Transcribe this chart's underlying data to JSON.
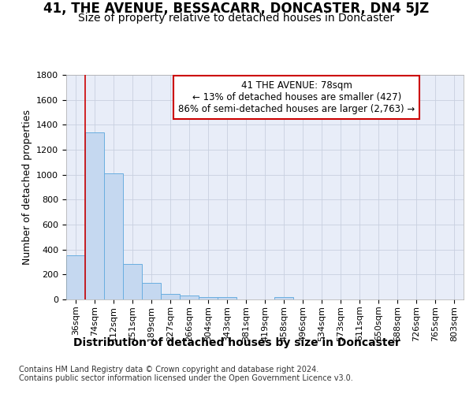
{
  "title": "41, THE AVENUE, BESSACARR, DONCASTER, DN4 5JZ",
  "subtitle": "Size of property relative to detached houses in Doncaster",
  "xlabel": "Distribution of detached houses by size in Doncaster",
  "ylabel": "Number of detached properties",
  "categories": [
    "36sqm",
    "74sqm",
    "112sqm",
    "151sqm",
    "189sqm",
    "227sqm",
    "266sqm",
    "304sqm",
    "343sqm",
    "381sqm",
    "419sqm",
    "458sqm",
    "496sqm",
    "534sqm",
    "573sqm",
    "611sqm",
    "650sqm",
    "688sqm",
    "726sqm",
    "765sqm",
    "803sqm"
  ],
  "values": [
    355,
    1340,
    1010,
    285,
    130,
    42,
    32,
    22,
    18,
    0,
    0,
    18,
    0,
    0,
    0,
    0,
    0,
    0,
    0,
    0,
    0
  ],
  "bar_color": "#c5d8f0",
  "bar_edge_color": "#6aaee0",
  "property_line_x": 0.5,
  "property_line_color": "#cc0000",
  "annotation_line1": "41 THE AVENUE: 78sqm",
  "annotation_line2": "← 13% of detached houses are smaller (427)",
  "annotation_line3": "86% of semi-detached houses are larger (2,763) →",
  "annotation_box_edgecolor": "#cc0000",
  "ylim": [
    0,
    1800
  ],
  "yticks": [
    0,
    200,
    400,
    600,
    800,
    1000,
    1200,
    1400,
    1600,
    1800
  ],
  "grid_color": "#c8d0e0",
  "bg_color": "#e8edf8",
  "footer_line1": "Contains HM Land Registry data © Crown copyright and database right 2024.",
  "footer_line2": "Contains public sector information licensed under the Open Government Licence v3.0.",
  "title_fontsize": 12,
  "subtitle_fontsize": 10,
  "ylabel_fontsize": 9,
  "xlabel_fontsize": 10,
  "tick_fontsize": 8,
  "ann_fontsize": 8.5,
  "footer_fontsize": 7
}
